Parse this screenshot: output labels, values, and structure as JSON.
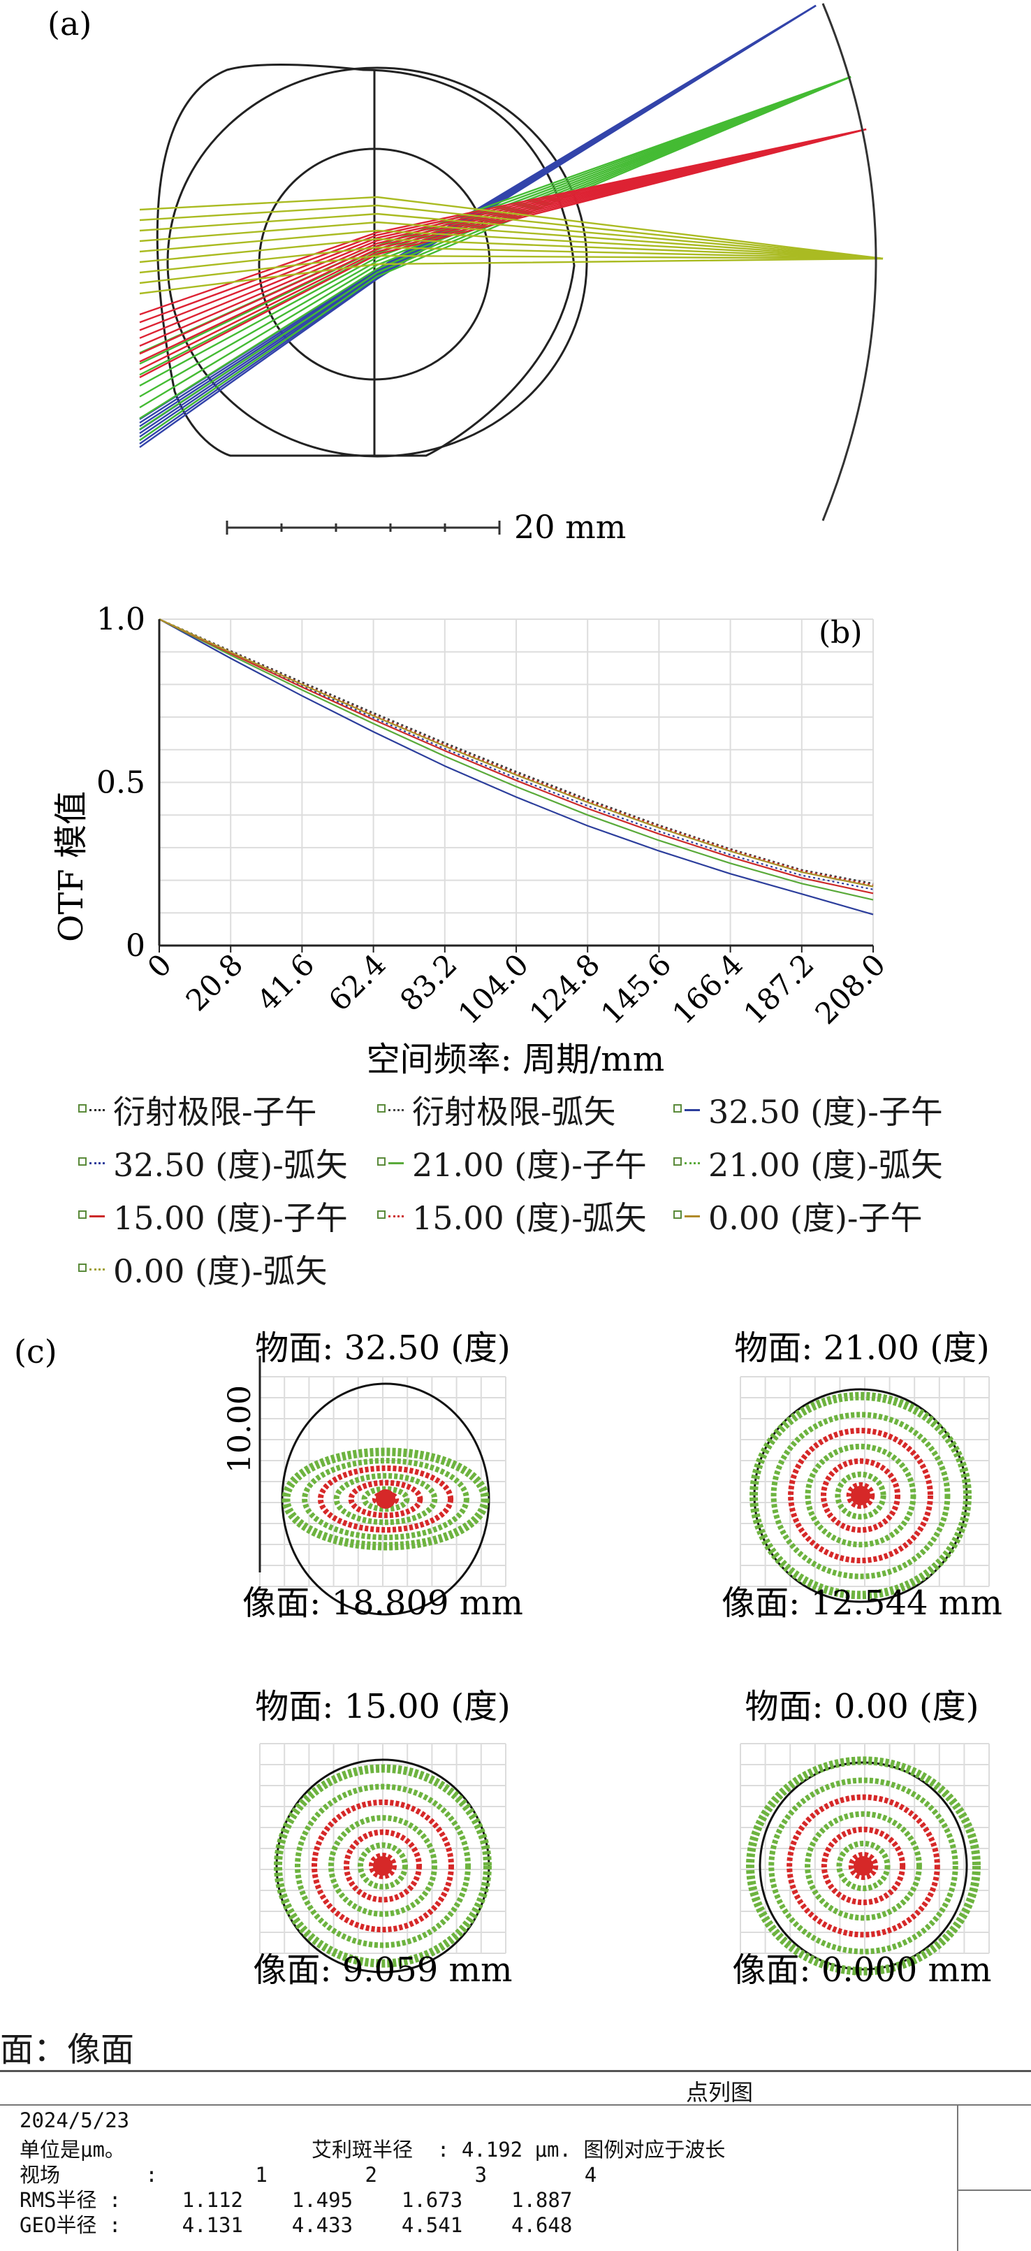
{
  "panel_a": {
    "label": "(a)",
    "scale_label": "20 mm",
    "ray_colors": [
      "#3344aa",
      "#44bb33",
      "#dd2233",
      "#aabb22"
    ]
  },
  "panel_b": {
    "label": "(b)",
    "chart_data": {
      "type": "line",
      "title": "",
      "xlabel": "空间频率: 周期/mm",
      "ylabel": "OTF 模值",
      "xlim": [
        0,
        208
      ],
      "ylim": [
        0,
        1.0
      ],
      "x_ticks": [
        "0",
        "20.8",
        "41.6",
        "62.4",
        "83.2",
        "104.0",
        "124.8",
        "145.6",
        "166.4",
        "187.2",
        "208.0"
      ],
      "y_ticks": [
        "0",
        "0.5",
        "1.0"
      ],
      "grid": true,
      "legend_position": "bottom",
      "x": [
        0,
        20.8,
        41.6,
        62.4,
        83.2,
        104.0,
        124.8,
        145.6,
        166.4,
        187.2,
        208.0
      ],
      "series": [
        {
          "name": "衍射极限-子午",
          "color": "#222222",
          "dash": "dot",
          "values": [
            1.0,
            0.903,
            0.807,
            0.713,
            0.621,
            0.533,
            0.448,
            0.369,
            0.296,
            0.232,
            0.19
          ]
        },
        {
          "name": "衍射极限-弧矢",
          "color": "#444444",
          "dash": "dot",
          "values": [
            1.0,
            0.902,
            0.806,
            0.712,
            0.62,
            0.532,
            0.447,
            0.368,
            0.295,
            0.231,
            0.189
          ]
        },
        {
          "name": "32.50 (度)-子午",
          "color": "#2c3e9c",
          "dash": "solid",
          "values": [
            1.0,
            0.88,
            0.765,
            0.655,
            0.55,
            0.455,
            0.367,
            0.29,
            0.22,
            0.158,
            0.095
          ]
        },
        {
          "name": "32.50 (度)-弧矢",
          "color": "#2c3e9c",
          "dash": "dot",
          "values": [
            1.0,
            0.897,
            0.796,
            0.698,
            0.603,
            0.513,
            0.428,
            0.35,
            0.278,
            0.215,
            0.172
          ]
        },
        {
          "name": "21.00 (度)-子午",
          "color": "#5aaa3a",
          "dash": "solid",
          "values": [
            1.0,
            0.89,
            0.783,
            0.68,
            0.58,
            0.487,
            0.4,
            0.322,
            0.252,
            0.19,
            0.14
          ]
        },
        {
          "name": "21.00 (度)-弧矢",
          "color": "#5aaa3a",
          "dash": "dot",
          "values": [
            1.0,
            0.9,
            0.8,
            0.705,
            0.612,
            0.524,
            0.44,
            0.362,
            0.29,
            0.226,
            0.182
          ]
        },
        {
          "name": "15.00 (度)-子午",
          "color": "#cc2a2a",
          "dash": "solid",
          "values": [
            1.0,
            0.895,
            0.792,
            0.692,
            0.597,
            0.506,
            0.42,
            0.342,
            0.271,
            0.207,
            0.16
          ]
        },
        {
          "name": "15.00 (度)-弧矢",
          "color": "#cc2a2a",
          "dash": "dot",
          "values": [
            1.0,
            0.9,
            0.802,
            0.707,
            0.615,
            0.527,
            0.443,
            0.365,
            0.293,
            0.229,
            0.185
          ]
        },
        {
          "name": "0.00 (度)-子午",
          "color": "#b08a2a",
          "dash": "solid",
          "values": [
            1.0,
            0.899,
            0.8,
            0.704,
            0.611,
            0.523,
            0.439,
            0.361,
            0.289,
            0.225,
            0.181
          ]
        },
        {
          "name": "0.00 (度)-弧矢",
          "color": "#a0a030",
          "dash": "dot",
          "values": [
            1.0,
            0.899,
            0.8,
            0.704,
            0.611,
            0.523,
            0.439,
            0.361,
            0.289,
            0.225,
            0.181
          ]
        }
      ]
    }
  },
  "panel_c": {
    "label": "(c)",
    "axis_value": "10.00",
    "spots": [
      {
        "object": "物面: 32.50 (度)",
        "image": "像面: 18.809 mm",
        "shape": "ellipse"
      },
      {
        "object": "物面: 21.00 (度)",
        "image": "像面: 12.544 mm",
        "shape": "round"
      },
      {
        "object": "物面: 15.00 (度)",
        "image": "像面: 9.059 mm",
        "shape": "round"
      },
      {
        "object": "物面: 0.00 (度)",
        "image": "像面: 0.000 mm",
        "shape": "round"
      }
    ],
    "surface_label": "面：像面",
    "report": {
      "title": "点列图",
      "date": "2024/5/23",
      "unit": "单位是μm。",
      "airy": "艾利斑半径  : 4.192 μm. 图例对应于波长",
      "field_row": "视场       :        1        2        3        4",
      "rms_row": "RMS半径 :     1.112    1.495    1.673    1.887",
      "geo_row": "GEO半径 :     4.131    4.433    4.541    4.648"
    }
  }
}
